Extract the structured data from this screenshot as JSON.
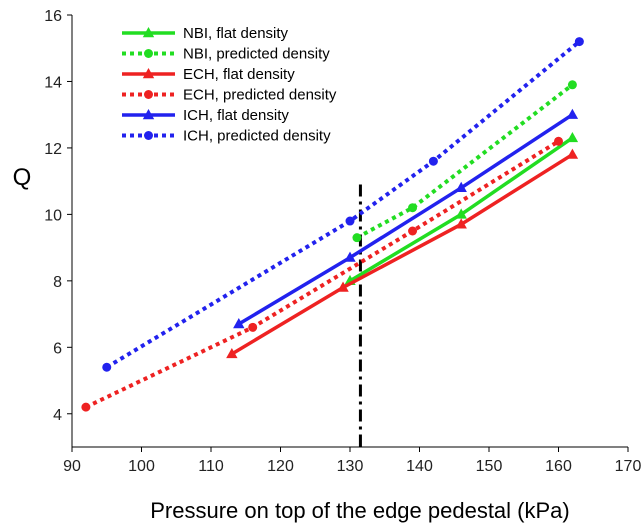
{
  "chart_data": {
    "type": "line",
    "xlabel": "Pressure on top of the edge pedestal (kPa)",
    "ylabel": "Q",
    "xlim": [
      90,
      170
    ],
    "ylim": [
      3,
      16
    ],
    "xticks": [
      90,
      100,
      110,
      120,
      130,
      140,
      150,
      160,
      170
    ],
    "yticks": [
      4,
      6,
      8,
      10,
      12,
      14,
      16
    ],
    "grid": false,
    "legend_position": "top-left",
    "vline": {
      "x": 131.5,
      "style": "dash-dot",
      "color": "#000000"
    },
    "series": [
      {
        "name": "NBI, flat density",
        "color": "#22dd22",
        "style": "solid",
        "marker": "triangle",
        "x": [
          130,
          146,
          162
        ],
        "y": [
          8.0,
          10.0,
          12.3
        ]
      },
      {
        "name": "NBI, predicted density",
        "color": "#22dd22",
        "style": "dotted",
        "marker": "circle",
        "x": [
          131,
          139,
          162
        ],
        "y": [
          9.3,
          10.2,
          13.9
        ]
      },
      {
        "name": "ECH, flat density",
        "color": "#ee2222",
        "style": "solid",
        "marker": "triangle",
        "x": [
          113,
          129,
          146,
          162
        ],
        "y": [
          5.8,
          7.8,
          9.7,
          11.8
        ]
      },
      {
        "name": "ECH, predicted density",
        "color": "#ee2222",
        "style": "dotted",
        "marker": "circle",
        "x": [
          92,
          116,
          139,
          160
        ],
        "y": [
          4.2,
          6.6,
          9.5,
          12.2
        ]
      },
      {
        "name": "ICH, flat density",
        "color": "#2222ee",
        "style": "solid",
        "marker": "triangle",
        "x": [
          114,
          130,
          146,
          162
        ],
        "y": [
          6.7,
          8.7,
          10.8,
          13.0
        ]
      },
      {
        "name": "ICH, predicted density",
        "color": "#2222ee",
        "style": "dotted",
        "marker": "circle",
        "x": [
          95,
          130,
          142,
          163
        ],
        "y": [
          5.4,
          9.8,
          11.6,
          15.2
        ]
      }
    ]
  }
}
